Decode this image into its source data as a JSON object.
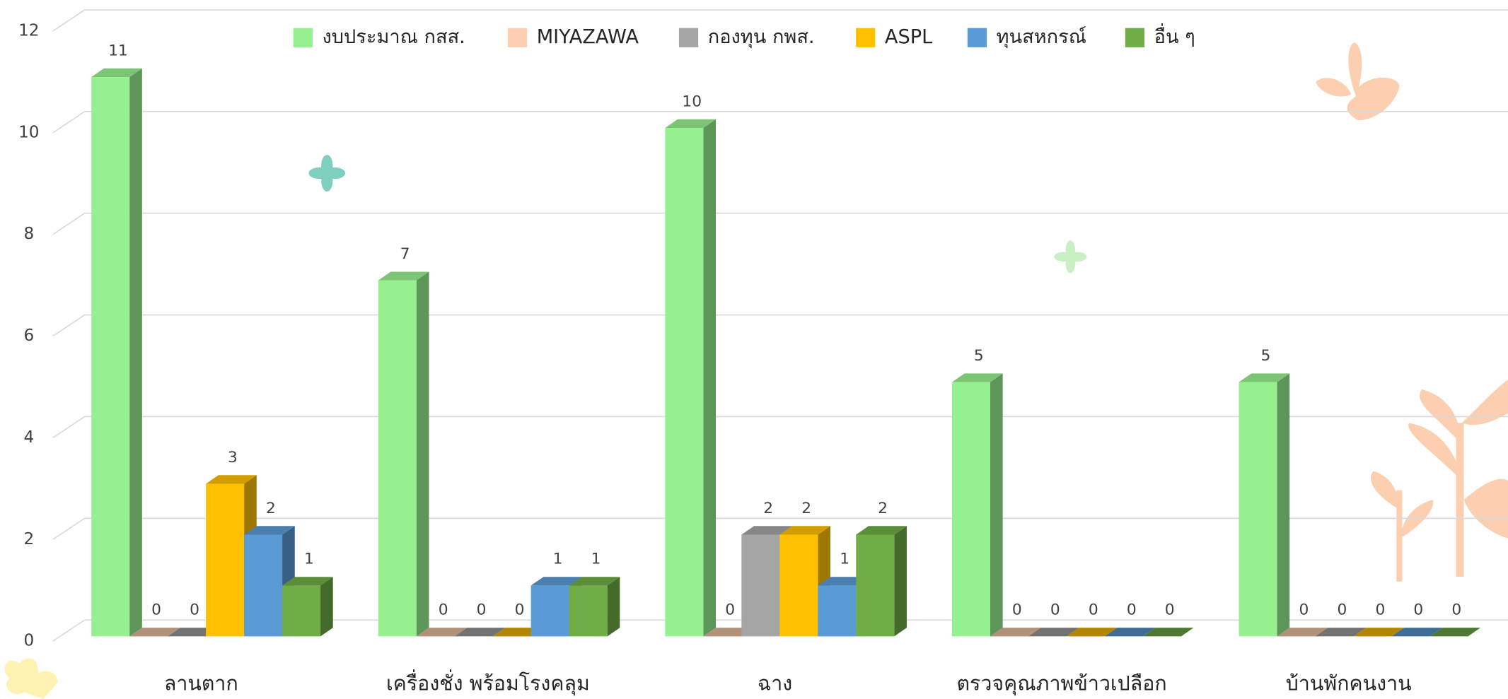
{
  "chart_data": {
    "type": "bar3d",
    "categories": [
      "ลานตาก",
      "เครื่องชั่ง พร้อมโรงคลุม",
      "ฉาง",
      "ตรวจคุณภาพข้าวเปลือก",
      "บ้านพักคนงาน"
    ],
    "series": [
      {
        "name": "งบประมาณ กสส.",
        "color": "#97f08f",
        "values": [
          11,
          7,
          10,
          5,
          5
        ]
      },
      {
        "name": "MIYAZAWA",
        "color": "#fbcfaf",
        "values": [
          0,
          0,
          0,
          0,
          0
        ]
      },
      {
        "name": "กองทุน กพส.",
        "color": "#a5a5a5",
        "values": [
          0,
          0,
          2,
          0,
          0
        ]
      },
      {
        "name": "ASPL",
        "color": "#ffc000",
        "values": [
          3,
          0,
          2,
          0,
          0
        ]
      },
      {
        "name": "ทุนสหกรณ์",
        "color": "#5b9bd5",
        "values": [
          2,
          1,
          1,
          0,
          0
        ]
      },
      {
        "name": "อื่น ๆ",
        "color": "#70ad47",
        "values": [
          1,
          1,
          2,
          0,
          0
        ]
      }
    ],
    "ylim": [
      0,
      12
    ],
    "yticks": [
      0,
      2,
      4,
      6,
      8,
      10,
      12
    ],
    "grid": true,
    "legend": "top"
  }
}
